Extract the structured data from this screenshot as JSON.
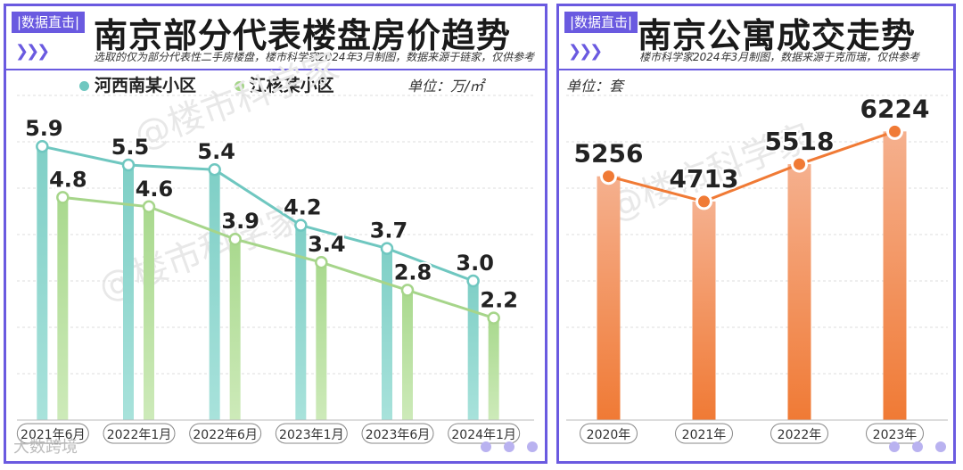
{
  "colors": {
    "frame": "#6a5ae0",
    "teal": "#7fcfc6",
    "teal_line": "#6fc7c0",
    "green": "#a9d98e",
    "green_line": "#a6d58a",
    "orange": "#f07a35",
    "orange_light": "#f5b08e"
  },
  "left": {
    "tag": "|数据直击|",
    "title": "南京部分代表楼盘房价趋势",
    "subtitle": "选取的仅为部分代表性二手房楼盘，楼市科学家2024年3月制图，数据来源于链家，仅供参考",
    "unit": "单位：万/㎡",
    "watermark": "@楼市科学家"
  },
  "right": {
    "tag": "|数据直击|",
    "title": "南京公寓成交走势",
    "subtitle": "楼市科学家2024年3月制图，数据来源于克而瑞，仅供参考",
    "unit": "单位：套",
    "watermark": "@楼市科学家"
  },
  "footer": {
    "logo": "大数跨境"
  },
  "chart_data": [
    {
      "type": "bar",
      "title": "南京部分代表楼盘房价趋势",
      "categories": [
        "2021年6月",
        "2022年1月",
        "2022年6月",
        "2023年1月",
        "2023年6月",
        "2024年1月"
      ],
      "series": [
        {
          "name": "河西南某小区",
          "values": [
            5.9,
            5.5,
            5.4,
            4.2,
            3.7,
            3.0
          ],
          "labels": [
            "5.9",
            "5.5",
            "5.4",
            "4.2",
            "3.7",
            "3.0"
          ]
        },
        {
          "name": "江核某小区",
          "values": [
            4.8,
            4.6,
            3.9,
            3.4,
            2.8,
            2.2
          ],
          "labels": [
            "4.8",
            "4.6",
            "3.9",
            "3.4",
            "2.8",
            "2.2"
          ]
        }
      ],
      "ylabel": "万/㎡",
      "ylim": [
        0,
        7
      ],
      "grid": true,
      "legend": "top-left"
    },
    {
      "type": "bar",
      "title": "南京公寓成交走势",
      "categories": [
        "2020年",
        "2021年",
        "2022年",
        "2023年"
      ],
      "series": [
        {
          "values": [
            5256,
            4713,
            5518,
            6224
          ],
          "labels": [
            "5256",
            "4713",
            "5518",
            "6224"
          ]
        }
      ],
      "ylabel": "套",
      "ylim": [
        0,
        7000
      ],
      "grid": true
    }
  ]
}
